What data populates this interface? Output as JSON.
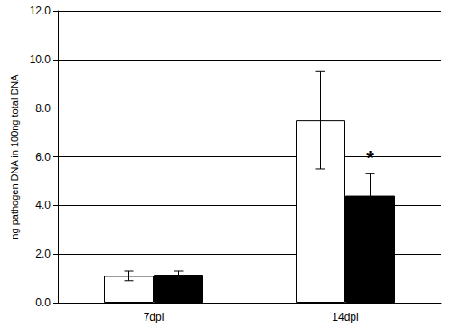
{
  "chart_data": {
    "type": "bar",
    "y_label": "ng pathogen DNA in 100ng total DNA",
    "categories": [
      "7dpi",
      "14dpi"
    ],
    "series": [
      {
        "color": "#ffffff",
        "values": [
          1.1,
          7.5
        ],
        "errors": [
          0.2,
          2.0
        ]
      },
      {
        "color": "#000000",
        "values": [
          1.15,
          4.4
        ],
        "errors": [
          0.15,
          0.9
        ]
      }
    ],
    "ylim": [
      0,
      12
    ],
    "yticks": [
      {
        "value": 0,
        "label": "0.0"
      },
      {
        "value": 2,
        "label": "2.0"
      },
      {
        "value": 4,
        "label": "4.0"
      },
      {
        "value": 6,
        "label": "6.0"
      },
      {
        "value": 8,
        "label": "8.0"
      },
      {
        "value": 10,
        "label": "10.0"
      },
      {
        "value": 12,
        "label": "12.0"
      }
    ],
    "grid": true,
    "annotations": [
      {
        "text": "*",
        "category": "14dpi",
        "series": 1,
        "y": 5.55
      }
    ]
  }
}
